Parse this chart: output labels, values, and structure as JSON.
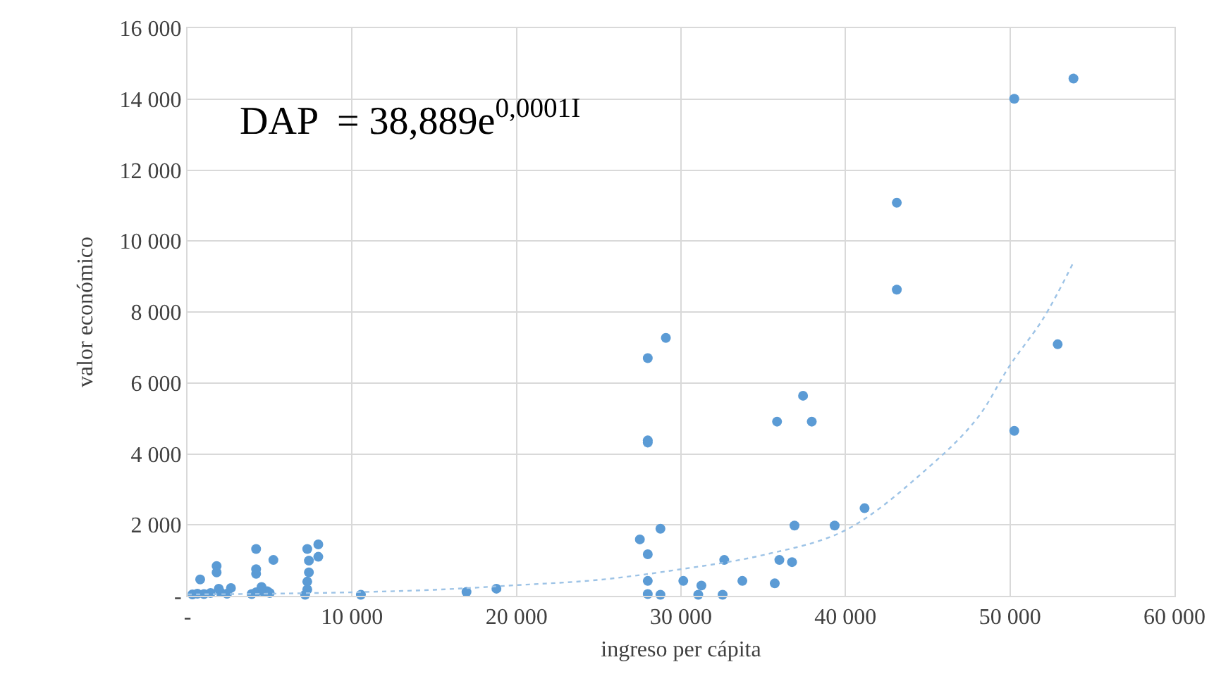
{
  "chart_data": {
    "type": "scatter",
    "xlabel": "ingreso per cápita",
    "ylabel": "valor económico",
    "annotations": [
      "DAP  = 38,889e$^{0,0001I}$"
    ],
    "xlim": [
      0,
      60000
    ],
    "xticks": [
      {
        "value": 0,
        "label": "-"
      },
      {
        "value": 10000,
        "label": "10 000"
      },
      {
        "value": 20000,
        "label": "20 000"
      },
      {
        "value": 30000,
        "label": "30 000"
      },
      {
        "value": 40000,
        "label": "40 000"
      },
      {
        "value": 50000,
        "label": "50 000"
      },
      {
        "value": 60000,
        "label": "60 000"
      }
    ],
    "ylim": [
      0,
      16000
    ],
    "yticks": [
      {
        "value": 0,
        "label": "-"
      },
      {
        "value": 2000,
        "label": "2 000"
      },
      {
        "value": 4000,
        "label": "4 000"
      },
      {
        "value": 6000,
        "label": "6 000"
      },
      {
        "value": 8000,
        "label": "8 000"
      },
      {
        "value": 10000,
        "label": "10 000"
      },
      {
        "value": 12000,
        "label": "12 000"
      },
      {
        "value": 14000,
        "label": "14 000"
      },
      {
        "value": 16000,
        "label": "16 000"
      }
    ],
    "grid": true,
    "series": [
      {
        "color": "#5b9bd5",
        "marker": "circle",
        "x": [
          53860,
          50260,
          43120,
          43120,
          52900,
          50260,
          29080,
          27980,
          27980,
          27980,
          37420,
          35840,
          37950,
          36900,
          39340,
          41160,
          28750,
          27500,
          27980,
          27980,
          27980,
          28750,
          30140,
          31240,
          31050,
          32530,
          32630,
          33730,
          35700,
          35980,
          36750,
          18780,
          16960,
          10540,
          770,
          1770,
          1770,
          1900,
          2640,
          4170,
          4170,
          4170,
          4170,
          5220,
          4840,
          4500,
          7280,
          7950,
          7380,
          7950,
          7280,
          7380,
          7280,
          7150,
          300,
          600,
          1000,
          1400,
          2000,
          2400,
          3900,
          4600,
          5000
        ],
        "values": [
          14580,
          14010,
          11080,
          8630,
          7090,
          4650,
          7270,
          6700,
          4380,
          4320,
          5640,
          4910,
          4910,
          1980,
          1980,
          2470,
          1890,
          1590,
          1170,
          420,
          50,
          30,
          420,
          290,
          30,
          30,
          1010,
          420,
          350,
          1010,
          950,
          200,
          110,
          30,
          460,
          840,
          660,
          200,
          220,
          1320,
          620,
          750,
          100,
          1010,
          130,
          250,
          1320,
          1450,
          990,
          1100,
          400,
          660,
          180,
          30,
          40,
          60,
          50,
          80,
          100,
          60,
          50,
          120,
          80
        ]
      },
      {
        "type": "line",
        "color": "#9dc3e6",
        "line_style": "dotted",
        "x": [
          0,
          5000,
          10000,
          15000,
          20000,
          25000,
          30000,
          35000,
          40000,
          45000,
          48000,
          50000,
          52000,
          53860
        ],
        "values": [
          40,
          60,
          100,
          170,
          300,
          450,
          750,
          1150,
          1850,
          3600,
          5000,
          6500,
          7800,
          9400
        ]
      }
    ]
  }
}
